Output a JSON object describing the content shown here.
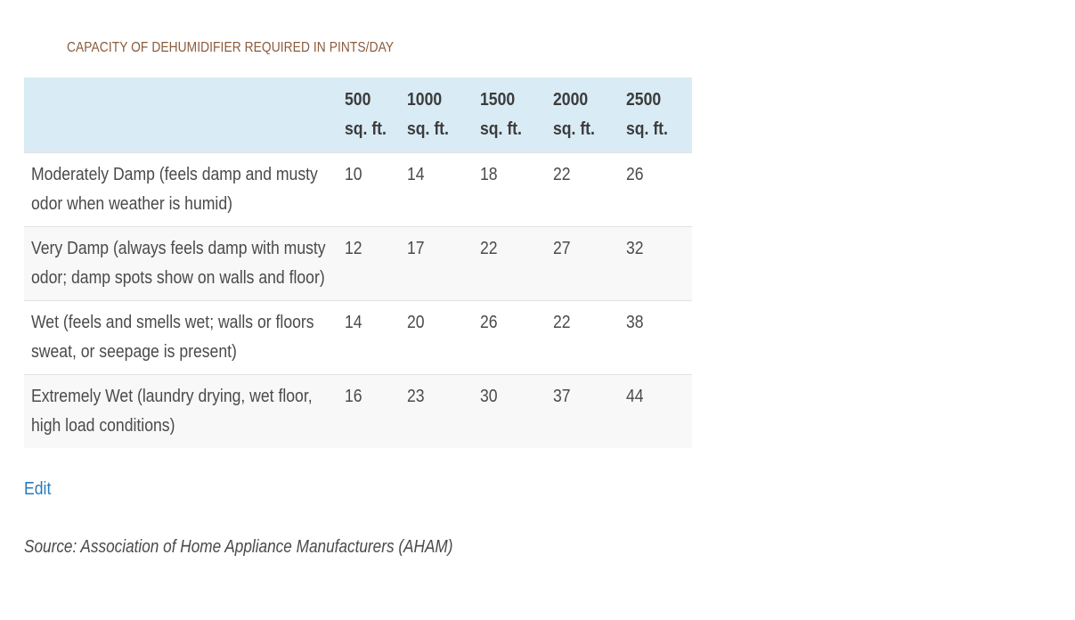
{
  "caption": "CAPACITY OF DEHUMIDIFIER REQUIRED IN PINTS/DAY",
  "table": {
    "header": [
      "",
      [
        "500",
        "sq. ft."
      ],
      [
        "1000",
        "sq. ft."
      ],
      [
        "1500",
        "sq. ft."
      ],
      [
        "2000",
        "sq. ft."
      ],
      [
        "2500",
        "sq. ft."
      ]
    ],
    "rows": [
      {
        "label": "Moderately Damp (feels damp and musty odor when weather is humid)",
        "values": [
          "10",
          "14",
          "18",
          "22",
          "26"
        ]
      },
      {
        "label": "Very Damp (always feels damp with musty odor; damp spots show on walls and floor)",
        "values": [
          "12",
          "17",
          "22",
          "27",
          "32"
        ]
      },
      {
        "label": "Wet (feels and smells wet; walls or floors sweat, or seepage is present)",
        "values": [
          "14",
          "20",
          "26",
          "22",
          "38"
        ]
      },
      {
        "label": "Extremely Wet (laundry drying, wet floor, high load conditions)",
        "values": [
          "16",
          "23",
          "30",
          "37",
          "44"
        ]
      }
    ]
  },
  "edit_label": "Edit",
  "source": "Source: Association of Home Appliance Manufacturers (AHAM)",
  "colors": {
    "header_bg": "#d9ebf5",
    "caption": "#8a5a3a",
    "link": "#2a7ab8"
  }
}
